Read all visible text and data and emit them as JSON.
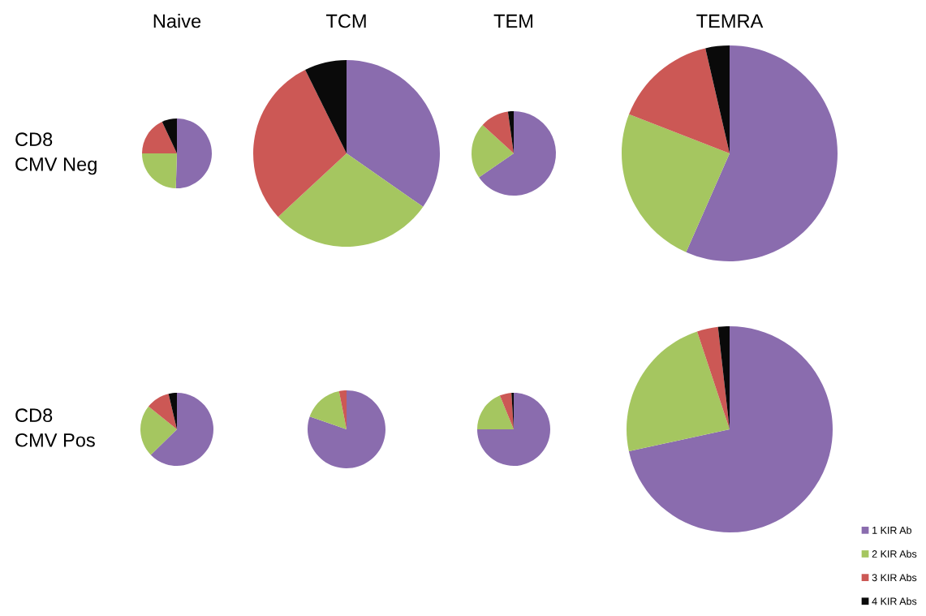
{
  "chart_data": [
    {
      "type": "pie",
      "title": "Naive",
      "ylabel": "CD8\nCMV Neg",
      "categories": [
        "1 KIR Ab",
        "2 KIR Abs",
        "3 KIR Abs",
        "4 KIR Abs"
      ],
      "values": [
        50.5,
        24.5,
        18,
        7
      ],
      "colors": [
        "#8a6cae",
        "#a5c660",
        "#cc5855",
        "#0a0a0a"
      ],
      "legend": "bottom right"
    },
    {
      "type": "pie",
      "title": "TCM",
      "categories": [
        null,
        null,
        null,
        null
      ],
      "values": [
        34.7,
        28.4,
        29.6,
        7.3
      ],
      "colors": [
        "#8a6cae",
        "#a5c660",
        "#cc5855",
        "#0a0a0a"
      ]
    },
    {
      "type": "pie",
      "title": "TEM",
      "categories": [
        null,
        null,
        null,
        null
      ],
      "values": [
        65.4,
        21.4,
        11,
        2.2
      ],
      "colors": [
        "#8a6cae",
        "#a5c660",
        "#cc5855",
        "#0a0a0a"
      ]
    },
    {
      "type": "pie",
      "title": "TEMRA",
      "categories": [
        null,
        null,
        null,
        null
      ],
      "values": [
        56.6,
        24.3,
        15.5,
        3.6
      ],
      "colors": [
        "#8a6cae",
        "#a5c660",
        "#cc5855",
        "#0a0a0a"
      ]
    },
    {
      "type": "pie",
      "ylabel": "CD8\nCMV Pos",
      "categories": [
        null,
        null,
        null,
        null
      ],
      "values": [
        62.7,
        23.1,
        10.5,
        3.7
      ],
      "colors": [
        "#8a6cae",
        "#a5c660",
        "#cc5855",
        "#0a0a0a"
      ]
    },
    {
      "type": "pie",
      "categories": [
        null,
        null,
        null,
        null
      ],
      "values": [
        80.3,
        16.6,
        3.1,
        0
      ],
      "colors": [
        "#8a6cae",
        "#a5c660",
        "#cc5855",
        "#0a0a0a"
      ]
    },
    {
      "type": "pie",
      "categories": [
        null,
        null,
        null,
        null
      ],
      "values": [
        75,
        18.8,
        5.2,
        1
      ],
      "colors": [
        "#8a6cae",
        "#a5c660",
        "#cc5855",
        "#0a0a0a"
      ]
    },
    {
      "type": "pie",
      "categories": [
        null,
        null,
        null,
        null
      ],
      "values": [
        71.6,
        23.3,
        3.3,
        1.8
      ],
      "colors": [
        "#8a6cae",
        "#a5c660",
        "#cc5855",
        "#0a0a0a"
      ]
    }
  ]
}
